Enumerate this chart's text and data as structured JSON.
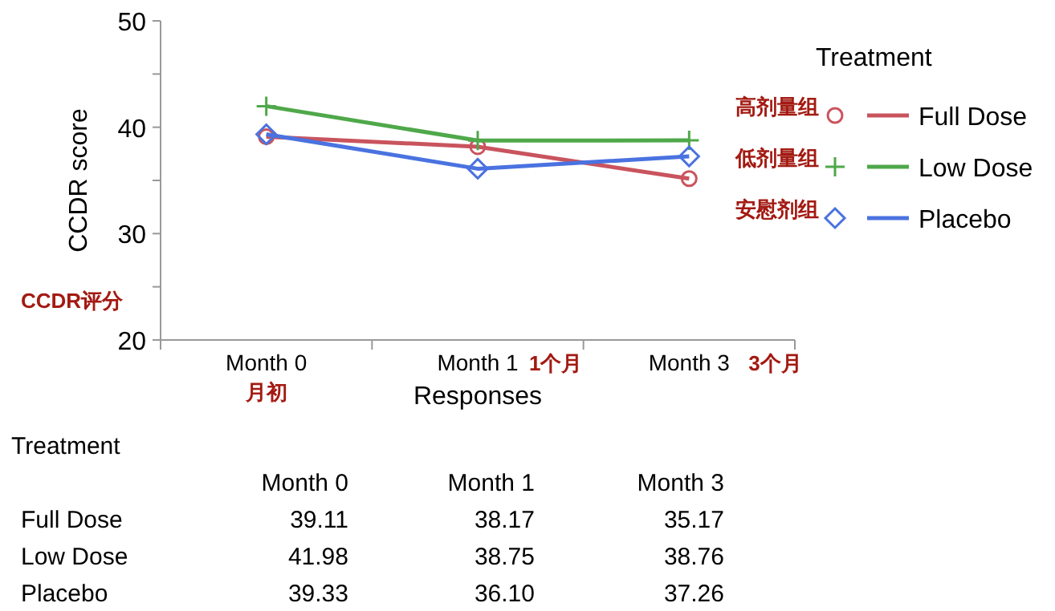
{
  "chart_data": {
    "type": "line",
    "xlabel": "Responses",
    "ylabel": "CCDR score",
    "legend_title": "Treatment",
    "categories": [
      "Month 0",
      "Month 1",
      "Month 3"
    ],
    "series": [
      {
        "name": "Full Dose",
        "color": "#c9545e",
        "marker": "circle",
        "values": [
          39.11,
          38.17,
          35.17
        ],
        "value_labels": [
          "39.11",
          "38.17",
          "35.17"
        ]
      },
      {
        "name": "Low Dose",
        "color": "#4fa84a",
        "marker": "cross",
        "values": [
          41.98,
          38.75,
          38.76
        ],
        "value_labels": [
          "41.98",
          "38.75",
          "38.76"
        ]
      },
      {
        "name": "Placebo",
        "color": "#4a72e0",
        "marker": "diamond",
        "values": [
          39.33,
          36.1,
          37.26
        ],
        "value_labels": [
          "39.33",
          "36.10",
          "37.26"
        ]
      }
    ],
    "ylim": [
      20,
      50
    ],
    "yticks": [
      20,
      {
        "value": 25,
        "label": null
      },
      30,
      {
        "value": 35,
        "label": null
      },
      40,
      {
        "value": 45,
        "label": null
      },
      50
    ],
    "legend": "right",
    "line_style": "solid",
    "annotations": [
      "高剂量组",
      "低剂量组",
      "安慰剂组",
      "CCDR评分",
      "月初",
      "1个月",
      "3个月"
    ]
  }
}
